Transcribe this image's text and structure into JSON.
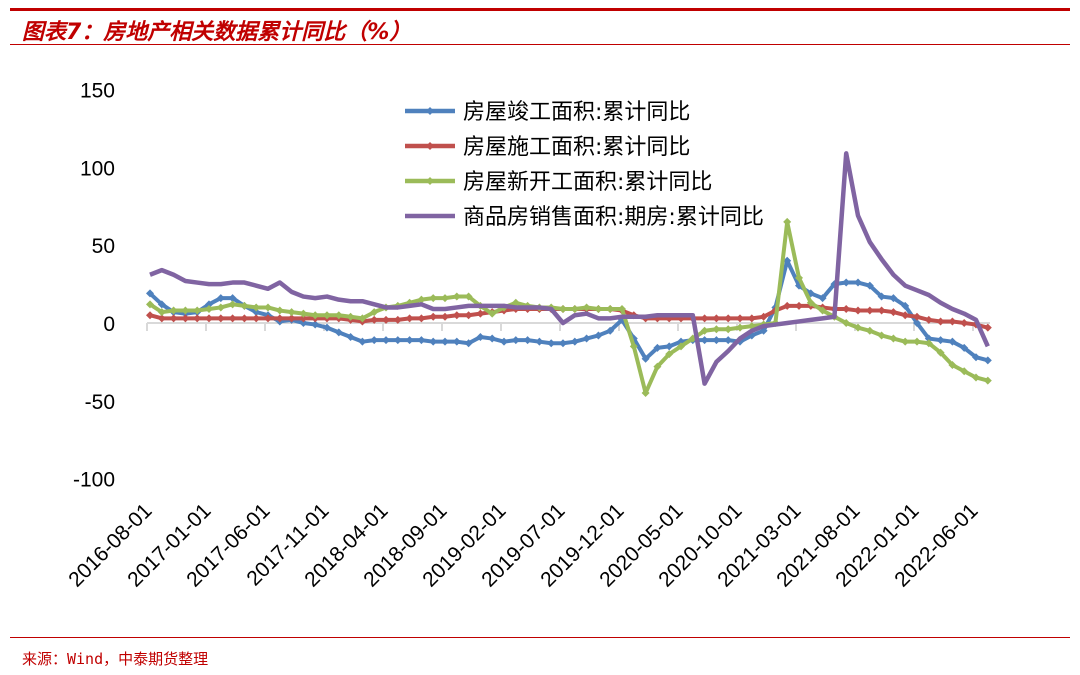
{
  "title": "图表7：房地产相关数据累计同比（%）",
  "source": "来源：Wind，中泰期货整理",
  "chart_data": {
    "type": "line",
    "title": "房地产相关数据累计同比（%）",
    "xlabel": "",
    "ylabel": "",
    "ylim": [
      -100,
      150
    ],
    "y_ticks": [
      "150",
      "100",
      "50",
      "0",
      "-50",
      "-100"
    ],
    "y_tick_values": [
      150,
      100,
      50,
      0,
      -50,
      -100
    ],
    "x_start": "2016-08",
    "x_end": "2022-07",
    "x_step": "monthly",
    "x_tick_labels": [
      "2016-08-01",
      "2017-01-01",
      "2017-06-01",
      "2017-11-01",
      "2018-04-01",
      "2018-09-01",
      "2019-02-01",
      "2019-07-01",
      "2019-12-01",
      "2020-05-01",
      "2020-10-01",
      "2021-03-01",
      "2021-08-01",
      "2022-01-01",
      "2022-06-01"
    ],
    "legend_position": "top-center",
    "series": [
      {
        "name": "房屋竣工面积:累计同比",
        "color": "#4f81bd",
        "markers": true,
        "values": [
          19,
          12,
          7,
          6,
          7,
          12,
          16,
          16,
          11,
          7,
          5,
          1,
          2,
          0,
          -1,
          -3,
          -6,
          -9,
          -12,
          -11,
          -11,
          -11,
          -11,
          -11,
          -12,
          -12,
          -12,
          -13,
          -9,
          -10,
          -12,
          -11,
          -11,
          -12,
          -13,
          -13,
          -12,
          -10,
          -8,
          -5,
          2,
          -10,
          -23,
          -16,
          -15,
          -12,
          -11,
          -11,
          -11,
          -11,
          -12,
          -8,
          -5,
          10,
          40,
          24,
          19,
          16,
          25,
          26,
          26,
          24,
          17,
          16,
          11,
          0,
          -10,
          -11,
          -12,
          -16,
          -22,
          -24
        ]
      },
      {
        "name": "房屋施工面积:累计同比",
        "color": "#c0504d",
        "markers": true,
        "values": [
          5,
          3,
          3,
          3,
          3,
          3,
          3,
          3,
          3,
          3,
          3,
          3,
          3,
          3,
          3,
          3,
          3,
          2,
          1,
          2,
          2,
          2,
          3,
          3,
          4,
          4,
          5,
          5,
          6,
          7,
          8,
          9,
          9,
          9,
          9,
          9,
          9,
          9,
          9,
          9,
          8,
          5,
          3,
          3,
          3,
          3,
          3,
          3,
          3,
          3,
          3,
          3,
          4,
          8,
          11,
          11,
          11,
          10,
          9,
          9,
          8,
          8,
          8,
          7,
          5,
          4,
          2,
          1,
          1,
          0,
          -1,
          -3
        ]
      },
      {
        "name": "房屋新开工面积:累计同比",
        "color": "#9bbb59",
        "markers": true,
        "values": [
          12,
          7,
          8,
          8,
          8,
          9,
          10,
          12,
          11,
          10,
          10,
          8,
          7,
          6,
          5,
          5,
          5,
          4,
          3,
          7,
          10,
          11,
          13,
          15,
          16,
          16,
          17,
          17,
          11,
          6,
          10,
          13,
          11,
          10,
          10,
          9,
          9,
          10,
          9,
          9,
          9,
          -15,
          -45,
          -28,
          -20,
          -15,
          -10,
          -5,
          -4,
          -4,
          -3,
          -2,
          -1,
          0,
          65,
          29,
          13,
          8,
          4,
          0,
          -3,
          -5,
          -8,
          -10,
          -12,
          -12,
          -13,
          -19,
          -27,
          -31,
          -35,
          -37
        ]
      },
      {
        "name": "商品房销售面积:期房:累计同比",
        "color": "#8064a2",
        "markers": false,
        "values": [
          31,
          34,
          31,
          27,
          26,
          25,
          25,
          26,
          26,
          24,
          22,
          26,
          20,
          17,
          16,
          17,
          15,
          14,
          14,
          12,
          10,
          10,
          11,
          12,
          9,
          9,
          10,
          11,
          11,
          11,
          11,
          10,
          10,
          10,
          9,
          0,
          5,
          6,
          3,
          3,
          4,
          4,
          4,
          5,
          5,
          5,
          5,
          -39,
          -25,
          -18,
          -10,
          -5,
          -2,
          -1,
          0,
          1,
          2,
          3,
          4,
          109,
          69,
          52,
          41,
          31,
          24,
          21,
          18,
          13,
          9,
          6,
          2,
          -15
        ]
      }
    ]
  }
}
